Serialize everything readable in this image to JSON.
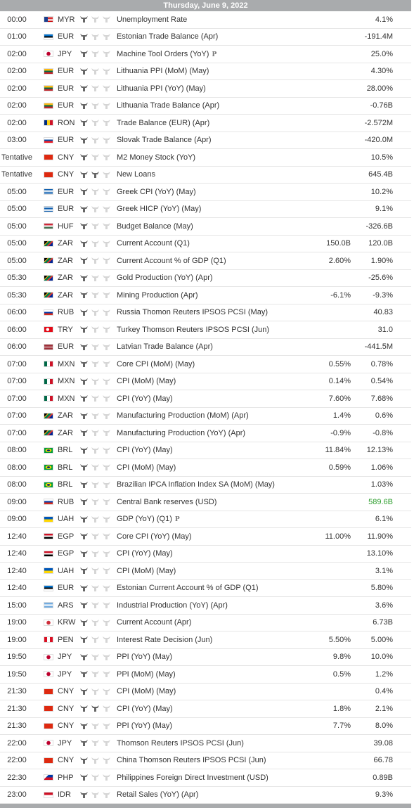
{
  "header": {
    "date": "Thursday, June 9, 2022"
  },
  "colors": {
    "header_bg": "#a9abad",
    "green": "#2e9e2e"
  },
  "rows": [
    {
      "time": "00:00",
      "cur": "MYR",
      "event": "Unemployment Rate",
      "actual": "",
      "forecast": "4.1%",
      "flag": "my",
      "imp": 1
    },
    {
      "time": "01:00",
      "cur": "EUR",
      "event": "Estonian Trade Balance (Apr)",
      "actual": "",
      "forecast": "-191.4M",
      "flag": "ee",
      "imp": 1
    },
    {
      "time": "02:00",
      "cur": "JPY",
      "event": "Machine Tool Orders (YoY)",
      "p": "P",
      "actual": "",
      "forecast": "25.0%",
      "flag": "jp",
      "imp": 1
    },
    {
      "time": "02:00",
      "cur": "EUR",
      "event": "Lithuania PPI (MoM) (May)",
      "actual": "",
      "forecast": "4.30%",
      "flag": "lt",
      "imp": 1
    },
    {
      "time": "02:00",
      "cur": "EUR",
      "event": "Lithuania PPI (YoY) (May)",
      "actual": "",
      "forecast": "28.00%",
      "flag": "lt",
      "imp": 1
    },
    {
      "time": "02:00",
      "cur": "EUR",
      "event": "Lithuania Trade Balance (Apr)",
      "actual": "",
      "forecast": "-0.76B",
      "flag": "lt",
      "imp": 1
    },
    {
      "time": "02:00",
      "cur": "RON",
      "event": "Trade Balance (EUR) (Apr)",
      "actual": "",
      "forecast": "-2.572M",
      "flag": "ro",
      "imp": 1
    },
    {
      "time": "03:00",
      "cur": "EUR",
      "event": "Slovak Trade Balance (Apr)",
      "actual": "",
      "forecast": "-420.0M",
      "flag": "sk",
      "imp": 1
    },
    {
      "time": "Tentative",
      "cur": "CNY",
      "event": "M2 Money Stock (YoY)",
      "actual": "",
      "forecast": "10.5%",
      "flag": "cn",
      "imp": 1
    },
    {
      "time": "Tentative",
      "cur": "CNY",
      "event": "New Loans",
      "actual": "",
      "forecast": "645.4B",
      "flag": "cn",
      "imp": 2
    },
    {
      "time": "05:00",
      "cur": "EUR",
      "event": "Greek CPI (YoY) (May)",
      "actual": "",
      "forecast": "10.2%",
      "flag": "gr",
      "imp": 1
    },
    {
      "time": "05:00",
      "cur": "EUR",
      "event": "Greek HICP (YoY) (May)",
      "actual": "",
      "forecast": "9.1%",
      "flag": "gr",
      "imp": 1
    },
    {
      "time": "05:00",
      "cur": "HUF",
      "event": "Budget Balance (May)",
      "actual": "",
      "forecast": "-326.6B",
      "flag": "hu",
      "imp": 1
    },
    {
      "time": "05:00",
      "cur": "ZAR",
      "event": "Current Account (Q1)",
      "actual": "150.0B",
      "forecast": "120.0B",
      "flag": "za",
      "imp": 1
    },
    {
      "time": "05:00",
      "cur": "ZAR",
      "event": "Current Account % of GDP (Q1)",
      "actual": "2.60%",
      "forecast": "1.90%",
      "flag": "za",
      "imp": 1
    },
    {
      "time": "05:30",
      "cur": "ZAR",
      "event": "Gold Production (YoY) (Apr)",
      "actual": "",
      "forecast": "-25.6%",
      "flag": "za",
      "imp": 1
    },
    {
      "time": "05:30",
      "cur": "ZAR",
      "event": "Mining Production (Apr)",
      "actual": "-6.1%",
      "forecast": "-9.3%",
      "flag": "za",
      "imp": 1
    },
    {
      "time": "06:00",
      "cur": "RUB",
      "event": "Russia Thomon Reuters IPSOS PCSI (May)",
      "actual": "",
      "forecast": "40.83",
      "flag": "ru",
      "imp": 1
    },
    {
      "time": "06:00",
      "cur": "TRY",
      "event": "Turkey Thomson Reuters IPSOS PCSI (Jun)",
      "actual": "",
      "forecast": "31.0",
      "flag": "tr",
      "imp": 1
    },
    {
      "time": "06:00",
      "cur": "EUR",
      "event": "Latvian Trade Balance (Apr)",
      "actual": "",
      "forecast": "-441.5M",
      "flag": "lv",
      "imp": 1
    },
    {
      "time": "07:00",
      "cur": "MXN",
      "event": "Core CPI (MoM) (May)",
      "actual": "0.55%",
      "forecast": "0.78%",
      "flag": "mx",
      "imp": 1
    },
    {
      "time": "07:00",
      "cur": "MXN",
      "event": "CPI (MoM) (May)",
      "actual": "0.14%",
      "forecast": "0.54%",
      "flag": "mx",
      "imp": 1
    },
    {
      "time": "07:00",
      "cur": "MXN",
      "event": "CPI (YoY) (May)",
      "actual": "7.60%",
      "forecast": "7.68%",
      "flag": "mx",
      "imp": 1
    },
    {
      "time": "07:00",
      "cur": "ZAR",
      "event": "Manufacturing Production (MoM) (Apr)",
      "actual": "1.4%",
      "forecast": "0.6%",
      "flag": "za",
      "imp": 1
    },
    {
      "time": "07:00",
      "cur": "ZAR",
      "event": "Manufacturing Production (YoY) (Apr)",
      "actual": "-0.9%",
      "forecast": "-0.8%",
      "flag": "za",
      "imp": 1
    },
    {
      "time": "08:00",
      "cur": "BRL",
      "event": "CPI (YoY) (May)",
      "actual": "11.84%",
      "forecast": "12.13%",
      "flag": "br",
      "imp": 1
    },
    {
      "time": "08:00",
      "cur": "BRL",
      "event": "CPI (MoM) (May)",
      "actual": "0.59%",
      "forecast": "1.06%",
      "flag": "br",
      "imp": 1
    },
    {
      "time": "08:00",
      "cur": "BRL",
      "event": "Brazilian IPCA Inflation Index SA (MoM) (May)",
      "actual": "",
      "forecast": "1.03%",
      "flag": "br",
      "imp": 1
    },
    {
      "time": "09:00",
      "cur": "RUB",
      "event": "Central Bank reserves (USD)",
      "actual": "",
      "forecast": "589.6B",
      "flag": "ru",
      "imp": 1,
      "green": true
    },
    {
      "time": "09:00",
      "cur": "UAH",
      "event": "GDP (YoY) (Q1)",
      "p": "P",
      "actual": "",
      "forecast": "6.1%",
      "flag": "ua",
      "imp": 1
    },
    {
      "time": "12:40",
      "cur": "EGP",
      "event": "Core CPI (YoY) (May)",
      "actual": "11.00%",
      "forecast": "11.90%",
      "flag": "eg",
      "imp": 1
    },
    {
      "time": "12:40",
      "cur": "EGP",
      "event": "CPI (YoY) (May)",
      "actual": "",
      "forecast": "13.10%",
      "flag": "eg",
      "imp": 1
    },
    {
      "time": "12:40",
      "cur": "UAH",
      "event": "CPI (MoM) (May)",
      "actual": "",
      "forecast": "3.1%",
      "flag": "ua",
      "imp": 1
    },
    {
      "time": "12:40",
      "cur": "EUR",
      "event": "Estonian Current Account % of GDP (Q1)",
      "actual": "",
      "forecast": "5.80%",
      "flag": "ee",
      "imp": 1
    },
    {
      "time": "15:00",
      "cur": "ARS",
      "event": "Industrial Production (YoY) (Apr)",
      "actual": "",
      "forecast": "3.6%",
      "flag": "ar",
      "imp": 1
    },
    {
      "time": "19:00",
      "cur": "KRW",
      "event": "Current Account (Apr)",
      "actual": "",
      "forecast": "6.73B",
      "flag": "kr",
      "imp": 1
    },
    {
      "time": "19:00",
      "cur": "PEN",
      "event": "Interest Rate Decision (Jun)",
      "actual": "5.50%",
      "forecast": "5.00%",
      "flag": "pe",
      "imp": 1
    },
    {
      "time": "19:50",
      "cur": "JPY",
      "event": "PPI (YoY) (May)",
      "actual": "9.8%",
      "forecast": "10.0%",
      "flag": "jp",
      "imp": 1
    },
    {
      "time": "19:50",
      "cur": "JPY",
      "event": "PPI (MoM) (May)",
      "actual": "0.5%",
      "forecast": "1.2%",
      "flag": "jp",
      "imp": 1
    },
    {
      "time": "21:30",
      "cur": "CNY",
      "event": "CPI (MoM) (May)",
      "actual": "",
      "forecast": "0.4%",
      "flag": "cn",
      "imp": 1
    },
    {
      "time": "21:30",
      "cur": "CNY",
      "event": "CPI (YoY) (May)",
      "actual": "1.8%",
      "forecast": "2.1%",
      "flag": "cn",
      "imp": 2
    },
    {
      "time": "21:30",
      "cur": "CNY",
      "event": "PPI (YoY) (May)",
      "actual": "7.7%",
      "forecast": "8.0%",
      "flag": "cn",
      "imp": 1
    },
    {
      "time": "22:00",
      "cur": "JPY",
      "event": "Thomson Reuters IPSOS PCSI (Jun)",
      "actual": "",
      "forecast": "39.08",
      "flag": "jp",
      "imp": 1
    },
    {
      "time": "22:00",
      "cur": "CNY",
      "event": "China Thomson Reuters IPSOS PCSI (Jun)",
      "actual": "",
      "forecast": "66.78",
      "flag": "cn",
      "imp": 1
    },
    {
      "time": "22:30",
      "cur": "PHP",
      "event": "Philippines Foreign Direct Investment (USD)",
      "actual": "",
      "forecast": "0.89B",
      "flag": "ph",
      "imp": 1
    },
    {
      "time": "23:00",
      "cur": "IDR",
      "event": "Retail Sales (YoY) (Apr)",
      "actual": "",
      "forecast": "9.3%",
      "flag": "id",
      "imp": 1
    }
  ]
}
